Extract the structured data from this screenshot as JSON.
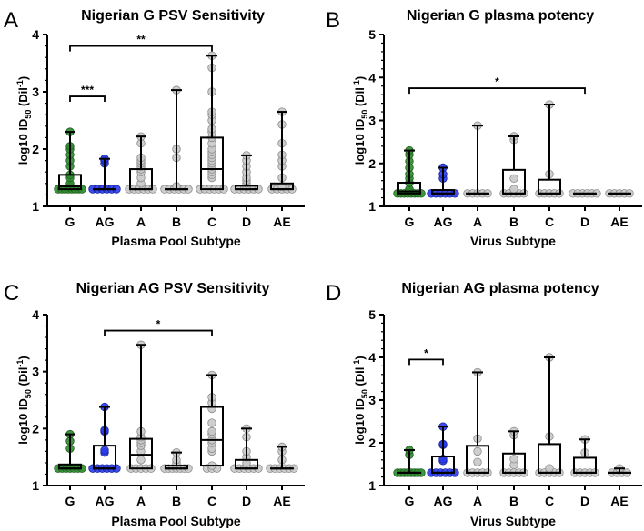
{
  "colors": {
    "G": "#2e8b2e",
    "G_stroke": "#1f5f1f",
    "AG": "#2a3be8",
    "AG_stroke": "#1624a0",
    "other": "#c9c9c9",
    "other_stroke": "#8c8c8c"
  },
  "chart_data": [
    {
      "panel": "A",
      "type": "box",
      "title": "Nigerian G PSV Sensitivity",
      "xlabel": "Plasma Pool Subtype",
      "ylabel": {
        "main": "log10 ID",
        "sub": "50",
        "mid": " (Dil",
        "sup": "-1",
        "end": ")"
      },
      "ylim": [
        1,
        4
      ],
      "yticks": [
        "1",
        "2",
        "3",
        "4"
      ],
      "categories": [
        "G",
        "AG",
        "A",
        "B",
        "C",
        "D",
        "AE"
      ],
      "boxes": [
        {
          "min": 1.3,
          "q1": 1.3,
          "median": 1.35,
          "q3": 1.55,
          "max": 2.3,
          "points": [
            1.3,
            1.3,
            1.3,
            1.3,
            1.3,
            1.3,
            1.3,
            1.3,
            1.35,
            1.4,
            1.5,
            1.55,
            1.7,
            1.8,
            1.9,
            2.0,
            2.05,
            2.3
          ]
        },
        {
          "min": 1.3,
          "q1": 1.3,
          "median": 1.3,
          "q3": 1.3,
          "max": 1.83,
          "points": [
            1.3,
            1.3,
            1.3,
            1.3,
            1.3,
            1.3,
            1.75,
            1.8,
            1.83
          ]
        },
        {
          "min": 1.3,
          "q1": 1.3,
          "median": 1.3,
          "q3": 1.65,
          "max": 2.22,
          "points": [
            1.3,
            1.3,
            1.3,
            1.3,
            1.3,
            1.3,
            1.4,
            1.5,
            1.6,
            1.65,
            1.7,
            1.75,
            1.8,
            1.85,
            2.1,
            2.22
          ]
        },
        {
          "min": 1.3,
          "q1": 1.3,
          "median": 1.3,
          "q3": 1.3,
          "max": 3.03,
          "points": [
            1.3,
            1.3,
            1.3,
            1.3,
            1.3,
            1.3,
            1.35,
            1.85,
            2.0,
            3.03
          ]
        },
        {
          "min": 1.3,
          "q1": 1.3,
          "median": 1.65,
          "q3": 2.2,
          "max": 3.63,
          "points": [
            1.3,
            1.3,
            1.3,
            1.3,
            1.3,
            1.3,
            1.5,
            1.55,
            1.6,
            1.65,
            1.7,
            1.75,
            1.8,
            1.85,
            1.9,
            1.95,
            2.0,
            2.1,
            2.2,
            2.3,
            2.35,
            2.5,
            2.6,
            2.65,
            3.0,
            3.42,
            3.63
          ]
        },
        {
          "min": 1.3,
          "q1": 1.3,
          "median": 1.3,
          "q3": 1.36,
          "max": 1.89,
          "points": [
            1.3,
            1.3,
            1.3,
            1.3,
            1.3,
            1.3,
            1.35,
            1.4,
            1.45,
            1.5,
            1.6,
            1.7,
            1.8,
            1.89
          ]
        },
        {
          "min": 1.3,
          "q1": 1.3,
          "median": 1.3,
          "q3": 1.4,
          "max": 2.65,
          "points": [
            1.3,
            1.3,
            1.3,
            1.3,
            1.3,
            1.35,
            1.5,
            1.7,
            1.8,
            1.9,
            2.1,
            2.43,
            2.65
          ]
        }
      ],
      "significance": [
        {
          "from": "G",
          "to": "C",
          "y": 3.8,
          "label": "**"
        },
        {
          "from": "G",
          "to": "AG",
          "y": 2.92,
          "label": "***"
        }
      ]
    },
    {
      "panel": "B",
      "type": "box",
      "title": "Nigerian G plasma potency",
      "xlabel": "Virus Subtype",
      "ylabel": {
        "main": "log10 ID",
        "sub": "50",
        "mid": " (Dil",
        "sup": "-1",
        "end": ")"
      },
      "ylim": [
        1,
        5
      ],
      "yticks": [
        "1",
        "2",
        "3",
        "4",
        "5"
      ],
      "categories": [
        "G",
        "AG",
        "A",
        "B",
        "C",
        "D",
        "AE"
      ],
      "boxes": [
        {
          "min": 1.3,
          "q1": 1.3,
          "median": 1.35,
          "q3": 1.55,
          "max": 2.3,
          "points": [
            1.3,
            1.3,
            1.3,
            1.3,
            1.3,
            1.3,
            1.3,
            1.3,
            1.35,
            1.4,
            1.55,
            1.65,
            1.75,
            1.9,
            2.05,
            2.2,
            2.3
          ]
        },
        {
          "min": 1.3,
          "q1": 1.3,
          "median": 1.3,
          "q3": 1.38,
          "max": 1.9,
          "points": [
            1.3,
            1.3,
            1.3,
            1.3,
            1.3,
            1.3,
            1.65,
            1.75,
            1.9
          ]
        },
        {
          "min": 1.3,
          "q1": 1.3,
          "median": 1.3,
          "q3": 1.3,
          "max": 2.88,
          "points": [
            1.3,
            1.3,
            1.3,
            1.3,
            1.3,
            2.88
          ]
        },
        {
          "min": 1.3,
          "q1": 1.3,
          "median": 1.3,
          "q3": 1.85,
          "max": 2.63,
          "points": [
            1.3,
            1.3,
            1.3,
            1.3,
            1.3,
            1.4,
            1.65,
            2.55,
            2.63
          ]
        },
        {
          "min": 1.3,
          "q1": 1.3,
          "median": 1.3,
          "q3": 1.62,
          "max": 3.37,
          "points": [
            1.3,
            1.3,
            1.3,
            1.3,
            1.3,
            1.75,
            3.37
          ]
        },
        {
          "min": 1.3,
          "q1": 1.3,
          "median": 1.3,
          "q3": 1.3,
          "max": 1.3,
          "points": [
            1.3,
            1.3,
            1.3,
            1.3,
            1.3,
            1.3
          ]
        },
        {
          "min": 1.3,
          "q1": 1.3,
          "median": 1.3,
          "q3": 1.3,
          "max": 1.3,
          "points": [
            1.3,
            1.3,
            1.3,
            1.3,
            1.3
          ]
        }
      ],
      "significance": [
        {
          "from": "G",
          "to": "D",
          "y": 3.75,
          "label": "*"
        }
      ]
    },
    {
      "panel": "C",
      "type": "box",
      "title": "Nigerian AG PSV Sensitivity",
      "xlabel": "Plasma Pool Subtype",
      "ylabel": {
        "main": "log10 ID",
        "sub": "50",
        "mid": " (Dil",
        "sup": "-1",
        "end": ")"
      },
      "ylim": [
        1,
        4
      ],
      "yticks": [
        "1",
        "2",
        "3",
        "4"
      ],
      "categories": [
        "G",
        "AG",
        "A",
        "B",
        "C",
        "D",
        "AE"
      ],
      "boxes": [
        {
          "min": 1.3,
          "q1": 1.3,
          "median": 1.3,
          "q3": 1.37,
          "max": 1.9,
          "points": [
            1.3,
            1.3,
            1.3,
            1.3,
            1.3,
            1.3,
            1.3,
            1.65,
            1.78,
            1.9
          ]
        },
        {
          "min": 1.3,
          "q1": 1.3,
          "median": 1.3,
          "q3": 1.7,
          "max": 2.38,
          "points": [
            1.3,
            1.3,
            1.3,
            1.3,
            1.3,
            1.3,
            1.58,
            1.62,
            1.95,
            1.97,
            2.38
          ]
        },
        {
          "min": 1.3,
          "q1": 1.3,
          "median": 1.54,
          "q3": 1.82,
          "max": 3.47,
          "points": [
            1.3,
            1.3,
            1.3,
            1.3,
            1.3,
            1.45,
            1.6,
            1.7,
            1.75,
            1.8,
            1.85,
            1.95,
            3.47
          ]
        },
        {
          "min": 1.3,
          "q1": 1.3,
          "median": 1.3,
          "q3": 1.35,
          "max": 1.58,
          "points": [
            1.3,
            1.3,
            1.3,
            1.3,
            1.3,
            1.3,
            1.3,
            1.4,
            1.45,
            1.58
          ]
        },
        {
          "min": 1.3,
          "q1": 1.35,
          "median": 1.8,
          "q3": 2.38,
          "max": 2.94,
          "points": [
            1.3,
            1.3,
            1.3,
            1.35,
            1.6,
            1.65,
            1.75,
            1.8,
            1.9,
            1.95,
            2.1,
            2.35,
            2.45,
            2.55,
            2.94
          ]
        },
        {
          "min": 1.3,
          "q1": 1.3,
          "median": 1.3,
          "q3": 1.45,
          "max": 2.0,
          "points": [
            1.3,
            1.3,
            1.3,
            1.3,
            1.3,
            1.3,
            1.35,
            1.4,
            1.5,
            1.6,
            1.85,
            2.0
          ]
        },
        {
          "min": 1.3,
          "q1": 1.3,
          "median": 1.3,
          "q3": 1.3,
          "max": 1.68,
          "points": [
            1.3,
            1.3,
            1.3,
            1.3,
            1.3,
            1.3,
            1.45,
            1.6,
            1.68
          ]
        }
      ],
      "significance": [
        {
          "from": "AG",
          "to": "C",
          "y": 3.72,
          "label": "*"
        }
      ]
    },
    {
      "panel": "D",
      "type": "box",
      "title": "Nigerian AG plasma potency",
      "xlabel": "Virus Subtype",
      "ylabel": {
        "main": "log10 ID",
        "sub": "50",
        "mid": " (Dil",
        "sup": "-1",
        "end": ")"
      },
      "ylim": [
        1,
        5
      ],
      "yticks": [
        "1",
        "2",
        "3",
        "4",
        "5"
      ],
      "categories": [
        "G",
        "AG",
        "A",
        "B",
        "C",
        "D",
        "AE"
      ],
      "boxes": [
        {
          "min": 1.3,
          "q1": 1.3,
          "median": 1.3,
          "q3": 1.3,
          "max": 1.83,
          "points": [
            1.3,
            1.3,
            1.3,
            1.3,
            1.3,
            1.3,
            1.3,
            1.3,
            1.72,
            1.83
          ]
        },
        {
          "min": 1.3,
          "q1": 1.3,
          "median": 1.3,
          "q3": 1.68,
          "max": 2.38,
          "points": [
            1.3,
            1.3,
            1.3,
            1.3,
            1.3,
            1.3,
            1.58,
            1.62,
            1.95,
            1.97,
            2.38
          ]
        },
        {
          "min": 1.3,
          "q1": 1.3,
          "median": 1.3,
          "q3": 1.93,
          "max": 3.65,
          "points": [
            1.3,
            1.3,
            1.3,
            1.3,
            1.3,
            1.55,
            1.8,
            2.1,
            3.65
          ]
        },
        {
          "min": 1.3,
          "q1": 1.3,
          "median": 1.3,
          "q3": 1.75,
          "max": 2.27,
          "points": [
            1.3,
            1.3,
            1.3,
            1.3,
            1.3,
            1.48,
            1.62,
            2.18,
            2.27
          ]
        },
        {
          "min": 1.3,
          "q1": 1.3,
          "median": 1.3,
          "q3": 1.97,
          "max": 4.0,
          "points": [
            1.3,
            1.3,
            1.3,
            1.3,
            1.3,
            1.4,
            2.15,
            4.0
          ]
        },
        {
          "min": 1.3,
          "q1": 1.3,
          "median": 1.3,
          "q3": 1.65,
          "max": 2.08,
          "points": [
            1.3,
            1.3,
            1.3,
            1.3,
            1.3,
            1.77,
            2.08
          ]
        },
        {
          "min": 1.3,
          "q1": 1.3,
          "median": 1.3,
          "q3": 1.3,
          "max": 1.4,
          "points": [
            1.3,
            1.3,
            1.3,
            1.3,
            1.4
          ]
        }
      ],
      "significance": [
        {
          "from": "G",
          "to": "AG",
          "y": 3.95,
          "label": "*"
        }
      ]
    }
  ]
}
